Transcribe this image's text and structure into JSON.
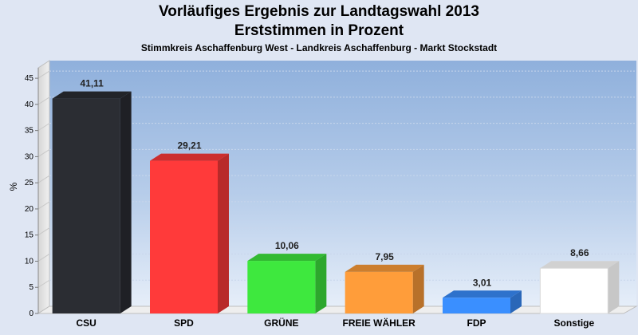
{
  "chart_data": {
    "type": "bar",
    "title": "Vorläufiges Ergebnis zur Landtagswahl 2013",
    "title2": "Erststimmen in Prozent",
    "subtitle": "Stimmkreis Aschaffenburg West - Landkreis Aschaffenburg - Markt Stockstadt",
    "xlabel": "",
    "ylabel": "%",
    "ylim": [
      0,
      47
    ],
    "yticks": [
      0,
      5,
      10,
      15,
      20,
      25,
      30,
      35,
      40,
      45
    ],
    "grid": true,
    "categories": [
      "CSU",
      "SPD",
      "GRÜNE",
      "FREIE WÄHLER",
      "FDP",
      "Sonstige"
    ],
    "values": [
      41.11,
      29.21,
      10.06,
      7.95,
      3.01,
      8.66
    ],
    "value_labels": [
      "41,11",
      "29,21",
      "10,06",
      "7,95",
      "3,01",
      "8,66"
    ],
    "colors": [
      "#2b2d33",
      "#ff3a3a",
      "#3ee83e",
      "#ff9d3a",
      "#3a8fff",
      "#ffffff"
    ]
  }
}
